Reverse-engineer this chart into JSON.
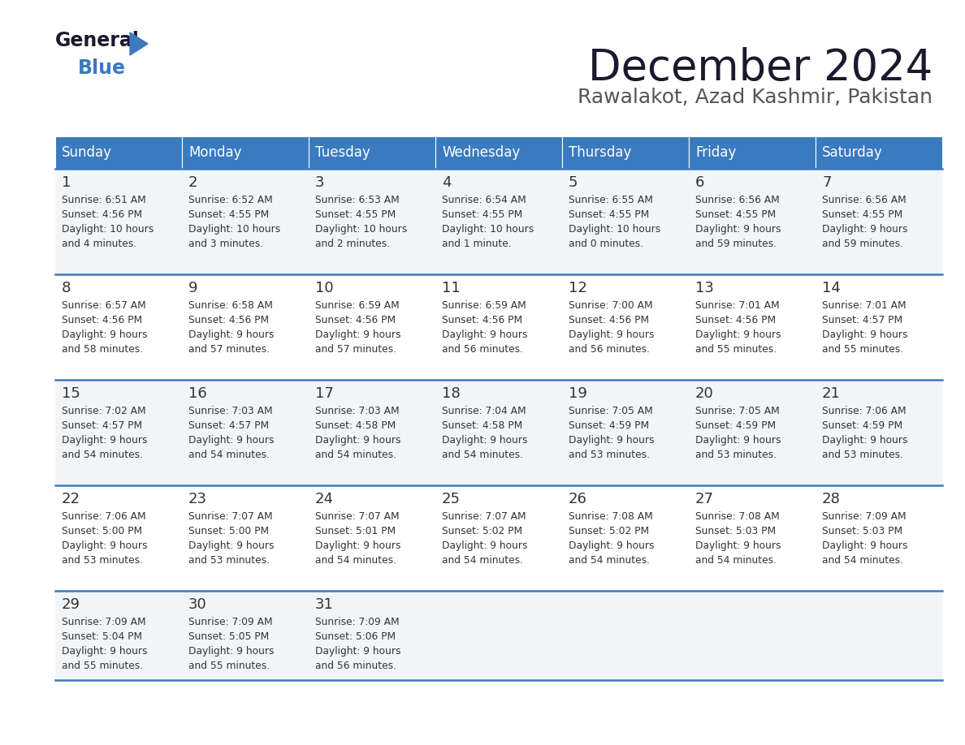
{
  "title": "December 2024",
  "subtitle": "Rawalakot, Azad Kashmir, Pakistan",
  "header_color": "#3a7abf",
  "header_text_color": "#ffffff",
  "days_of_week": [
    "Sunday",
    "Monday",
    "Tuesday",
    "Wednesday",
    "Thursday",
    "Friday",
    "Saturday"
  ],
  "row_bg_odd": "#f2f5f8",
  "row_bg_even": "#ffffff",
  "border_color": "#3a7abf",
  "text_color": "#333333",
  "logo_general_color": "#1a1a2e",
  "logo_blue_color": "#3a7abf",
  "logo_triangle_color": "#3a7abf",
  "calendar_data": [
    [
      {
        "day": 1,
        "sunrise": "6:51 AM",
        "sunset": "4:56 PM",
        "daylight_hours": 10,
        "daylight_minutes": 4
      },
      {
        "day": 2,
        "sunrise": "6:52 AM",
        "sunset": "4:55 PM",
        "daylight_hours": 10,
        "daylight_minutes": 3
      },
      {
        "day": 3,
        "sunrise": "6:53 AM",
        "sunset": "4:55 PM",
        "daylight_hours": 10,
        "daylight_minutes": 2
      },
      {
        "day": 4,
        "sunrise": "6:54 AM",
        "sunset": "4:55 PM",
        "daylight_hours": 10,
        "daylight_minutes": 1
      },
      {
        "day": 5,
        "sunrise": "6:55 AM",
        "sunset": "4:55 PM",
        "daylight_hours": 10,
        "daylight_minutes": 0
      },
      {
        "day": 6,
        "sunrise": "6:56 AM",
        "sunset": "4:55 PM",
        "daylight_hours": 9,
        "daylight_minutes": 59
      },
      {
        "day": 7,
        "sunrise": "6:56 AM",
        "sunset": "4:55 PM",
        "daylight_hours": 9,
        "daylight_minutes": 59
      }
    ],
    [
      {
        "day": 8,
        "sunrise": "6:57 AM",
        "sunset": "4:56 PM",
        "daylight_hours": 9,
        "daylight_minutes": 58
      },
      {
        "day": 9,
        "sunrise": "6:58 AM",
        "sunset": "4:56 PM",
        "daylight_hours": 9,
        "daylight_minutes": 57
      },
      {
        "day": 10,
        "sunrise": "6:59 AM",
        "sunset": "4:56 PM",
        "daylight_hours": 9,
        "daylight_minutes": 57
      },
      {
        "day": 11,
        "sunrise": "6:59 AM",
        "sunset": "4:56 PM",
        "daylight_hours": 9,
        "daylight_minutes": 56
      },
      {
        "day": 12,
        "sunrise": "7:00 AM",
        "sunset": "4:56 PM",
        "daylight_hours": 9,
        "daylight_minutes": 56
      },
      {
        "day": 13,
        "sunrise": "7:01 AM",
        "sunset": "4:56 PM",
        "daylight_hours": 9,
        "daylight_minutes": 55
      },
      {
        "day": 14,
        "sunrise": "7:01 AM",
        "sunset": "4:57 PM",
        "daylight_hours": 9,
        "daylight_minutes": 55
      }
    ],
    [
      {
        "day": 15,
        "sunrise": "7:02 AM",
        "sunset": "4:57 PM",
        "daylight_hours": 9,
        "daylight_minutes": 54
      },
      {
        "day": 16,
        "sunrise": "7:03 AM",
        "sunset": "4:57 PM",
        "daylight_hours": 9,
        "daylight_minutes": 54
      },
      {
        "day": 17,
        "sunrise": "7:03 AM",
        "sunset": "4:58 PM",
        "daylight_hours": 9,
        "daylight_minutes": 54
      },
      {
        "day": 18,
        "sunrise": "7:04 AM",
        "sunset": "4:58 PM",
        "daylight_hours": 9,
        "daylight_minutes": 54
      },
      {
        "day": 19,
        "sunrise": "7:05 AM",
        "sunset": "4:59 PM",
        "daylight_hours": 9,
        "daylight_minutes": 53
      },
      {
        "day": 20,
        "sunrise": "7:05 AM",
        "sunset": "4:59 PM",
        "daylight_hours": 9,
        "daylight_minutes": 53
      },
      {
        "day": 21,
        "sunrise": "7:06 AM",
        "sunset": "4:59 PM",
        "daylight_hours": 9,
        "daylight_minutes": 53
      }
    ],
    [
      {
        "day": 22,
        "sunrise": "7:06 AM",
        "sunset": "5:00 PM",
        "daylight_hours": 9,
        "daylight_minutes": 53
      },
      {
        "day": 23,
        "sunrise": "7:07 AM",
        "sunset": "5:00 PM",
        "daylight_hours": 9,
        "daylight_minutes": 53
      },
      {
        "day": 24,
        "sunrise": "7:07 AM",
        "sunset": "5:01 PM",
        "daylight_hours": 9,
        "daylight_minutes": 54
      },
      {
        "day": 25,
        "sunrise": "7:07 AM",
        "sunset": "5:02 PM",
        "daylight_hours": 9,
        "daylight_minutes": 54
      },
      {
        "day": 26,
        "sunrise": "7:08 AM",
        "sunset": "5:02 PM",
        "daylight_hours": 9,
        "daylight_minutes": 54
      },
      {
        "day": 27,
        "sunrise": "7:08 AM",
        "sunset": "5:03 PM",
        "daylight_hours": 9,
        "daylight_minutes": 54
      },
      {
        "day": 28,
        "sunrise": "7:09 AM",
        "sunset": "5:03 PM",
        "daylight_hours": 9,
        "daylight_minutes": 54
      }
    ],
    [
      {
        "day": 29,
        "sunrise": "7:09 AM",
        "sunset": "5:04 PM",
        "daylight_hours": 9,
        "daylight_minutes": 55
      },
      {
        "day": 30,
        "sunrise": "7:09 AM",
        "sunset": "5:05 PM",
        "daylight_hours": 9,
        "daylight_minutes": 55
      },
      {
        "day": 31,
        "sunrise": "7:09 AM",
        "sunset": "5:06 PM",
        "daylight_hours": 9,
        "daylight_minutes": 56
      },
      null,
      null,
      null,
      null
    ]
  ]
}
